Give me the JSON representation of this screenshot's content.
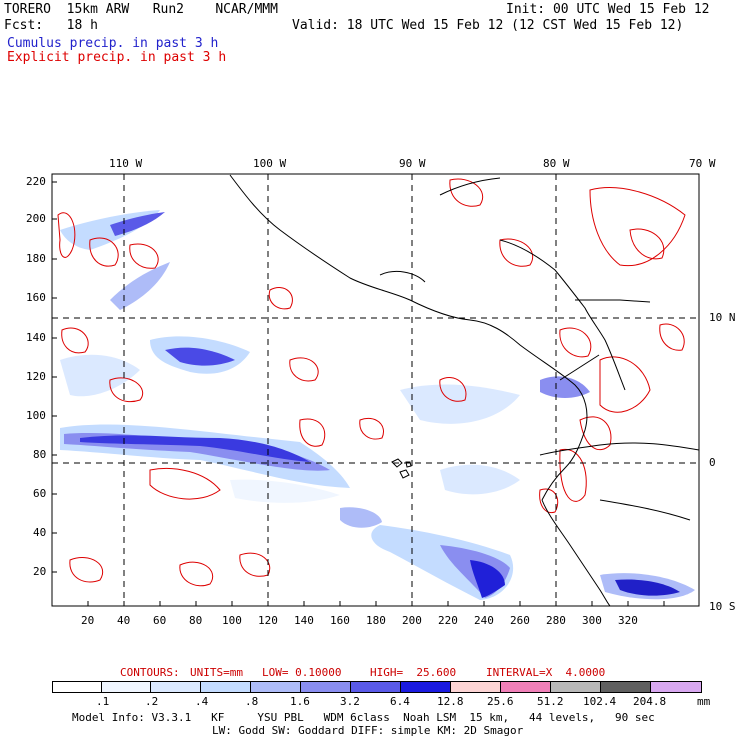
{
  "header": {
    "model_line": "TORERO  15km ARW   Run2    NCAR/MMM",
    "init": "Init: 00 UTC Wed 15 Feb 12",
    "fcst_line": "Fcst:   18 h",
    "valid": "Valid: 18 UTC Wed 15 Feb 12 (12 CST Wed 15 Feb 12)",
    "field_cumulus": "Cumulus precip. in past 3 h",
    "field_explicit": "Explicit precip. in past 3 h",
    "cumulus_color": "#2222cc",
    "explicit_color": "#dd0000"
  },
  "map": {
    "top_labels": [
      "110 W",
      "100 W",
      "90 W",
      "80 W",
      "70 W"
    ],
    "right_labels": [
      "10 N",
      "0",
      "10 S"
    ],
    "y_ticks": [
      "220",
      "200",
      "180",
      "160",
      "140",
      "120",
      "100",
      "80",
      "60",
      "40",
      "20"
    ],
    "x_ticks": [
      "20",
      "40",
      "60",
      "80",
      "100",
      "120",
      "140",
      "160",
      "180",
      "200",
      "220",
      "240",
      "260",
      "280",
      "300",
      "320"
    ]
  },
  "contour_info": {
    "label": "CONTOURS:",
    "units": "UNITS=mm",
    "low": "LOW= 0.10000",
    "high": "HIGH=  25.600",
    "interval": "INTERVAL=X  4.0000",
    "color": "#cc0000"
  },
  "colorbar": {
    "labels": [
      ".1",
      ".2",
      ".4",
      ".8",
      "1.6",
      "3.2",
      "6.4",
      "12.8",
      "25.6",
      "51.2",
      "102.4",
      "204.8"
    ],
    "unit": "mm",
    "colors": [
      "#ffffff",
      "#f0f6ff",
      "#dbe9ff",
      "#c4dcff",
      "#aebcf8",
      "#8a8ef0",
      "#5a5ae8",
      "#1a1ae0",
      "#fcd4d4",
      "#f080b8",
      "#b8b8b8",
      "#606060",
      "#d8a8f0"
    ]
  },
  "footer": {
    "line1": "Model Info: V3.3.1   KF     YSU PBL   WDM 6class  Noah LSM  15 km,   44 levels,   90 sec",
    "line2": "LW: Godd SW: Goddard DIFF: simple KM: 2D Smagor"
  }
}
